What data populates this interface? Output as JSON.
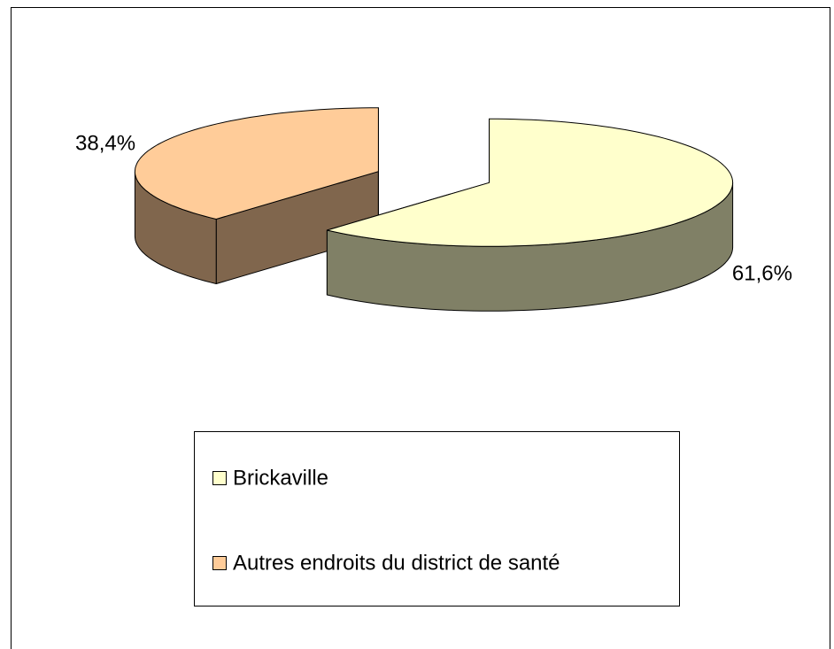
{
  "chart_data": {
    "type": "pie3d",
    "categories": [
      "Brickaville",
      "Autres endroits du district de santé"
    ],
    "values": [
      61.6,
      38.4
    ],
    "value_labels": [
      "61,6%",
      "38,4%"
    ],
    "colors": [
      "#ffffcc",
      "#ffcc99"
    ],
    "legend": "bottom"
  }
}
